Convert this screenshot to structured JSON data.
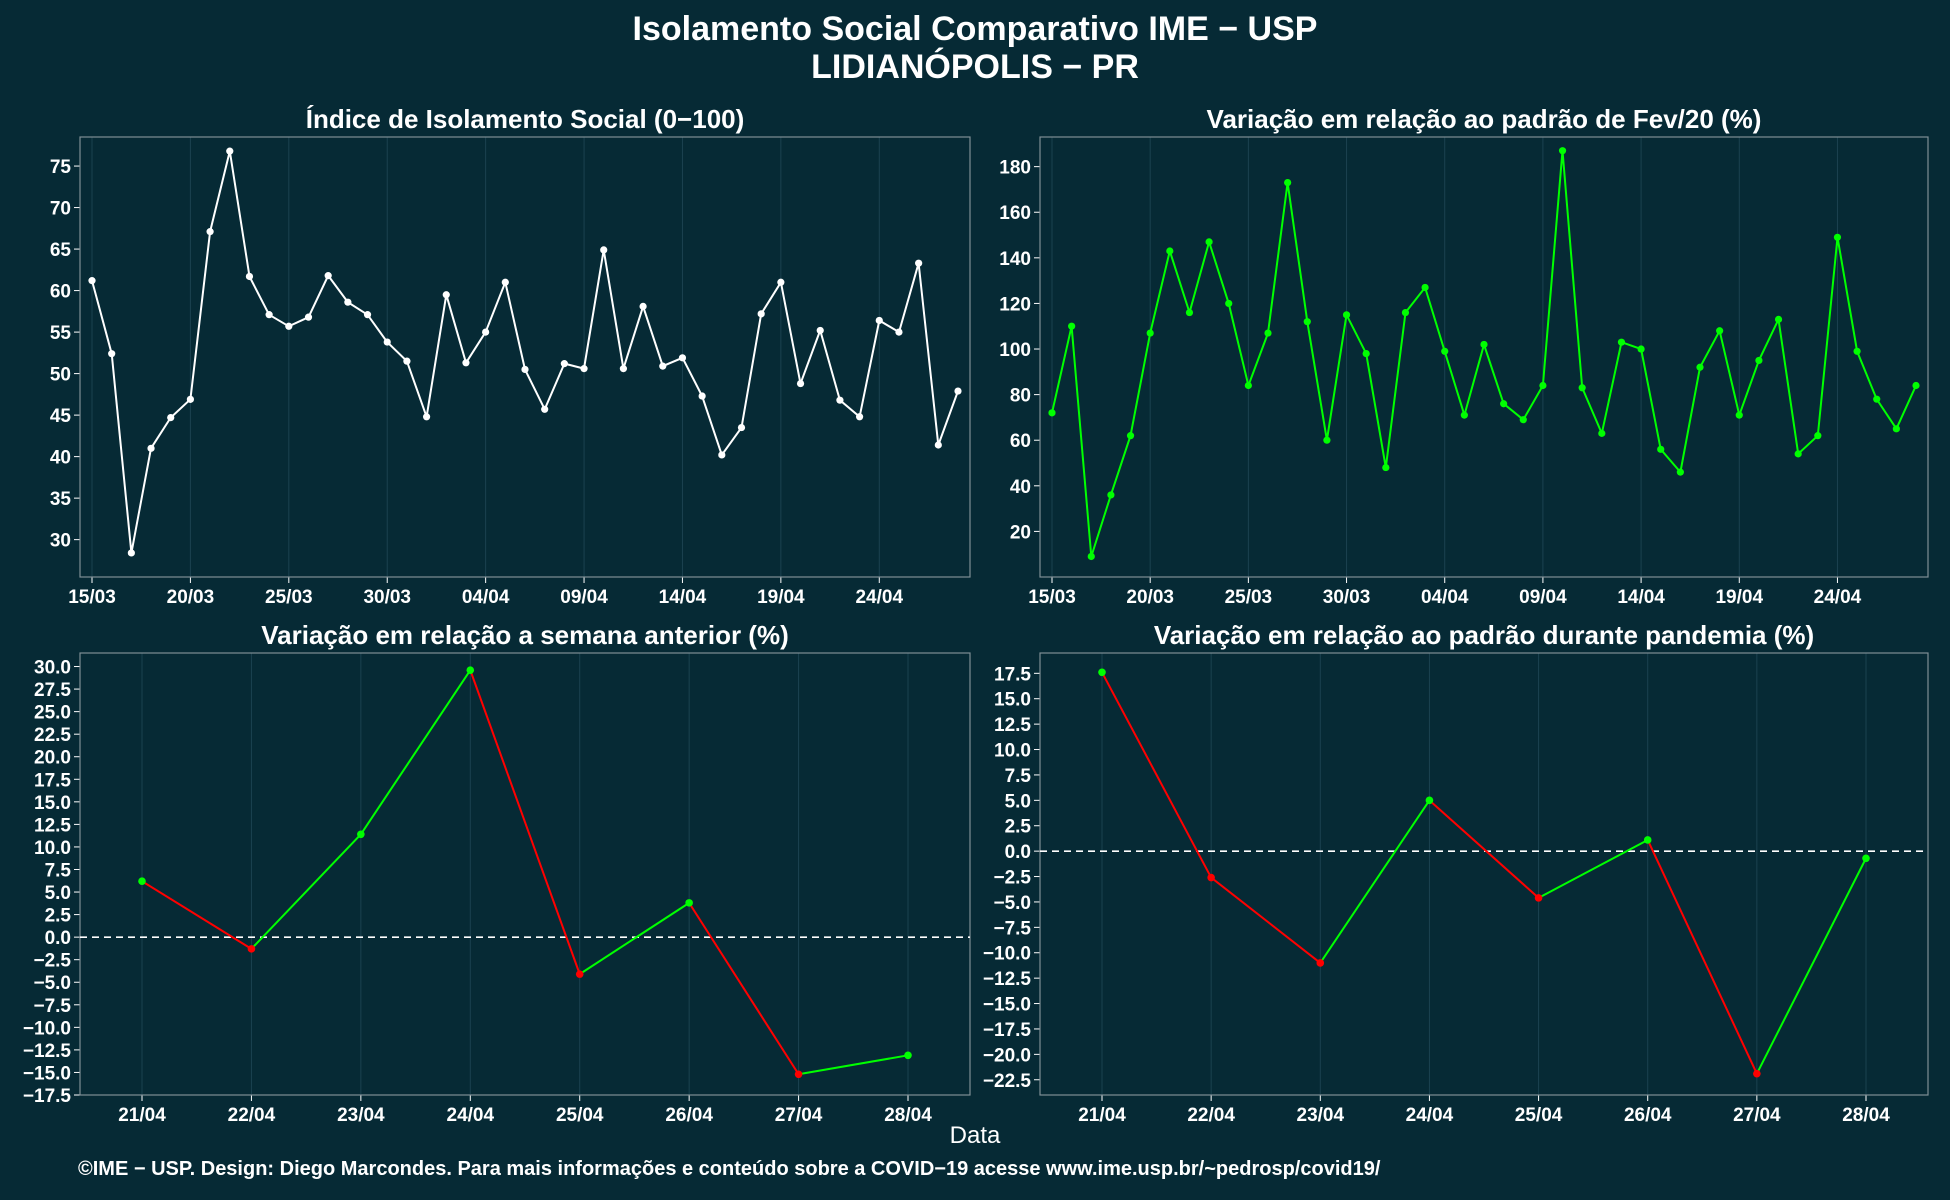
{
  "header": {
    "title_line1": "Isolamento Social Comparativo IME − USP",
    "title_line2": "LIDIANÓPOLIS − PR"
  },
  "footer": {
    "xlabel": "Data",
    "caption": "©IME − USP. Design: Diego Marcondes. Para mais informações e conteúdo sobre a COVID−19 acesse www.ime.usp.br/~pedrosp/covid19/"
  },
  "colors": {
    "background": "#062a35",
    "panel_border": "#7f8f95",
    "grid": "#1b4250",
    "white_series": "#ffffff",
    "increase": "#00ff00",
    "decrease": "#ff0000"
  },
  "chart_data": [
    {
      "type": "line",
      "title": "Índice de Isolamento Social (0−100)",
      "x_start": "15/03",
      "x_tick_labels": [
        "15/03",
        "20/03",
        "25/03",
        "30/03",
        "04/04",
        "09/04",
        "14/04",
        "19/04",
        "24/04"
      ],
      "y_ticks": [
        30,
        35,
        40,
        45,
        50,
        55,
        60,
        65,
        70,
        75
      ],
      "ylim": [
        25.5,
        78.5
      ],
      "color": "white",
      "values": [
        61.2,
        52.4,
        28.4,
        41.0,
        44.7,
        46.9,
        67.1,
        76.8,
        61.7,
        57.1,
        55.7,
        56.8,
        61.8,
        58.6,
        57.1,
        53.8,
        51.5,
        44.8,
        59.5,
        51.3,
        55.0,
        61.0,
        50.5,
        45.7,
        51.2,
        50.6,
        64.9,
        50.6,
        58.1,
        50.9,
        51.9,
        47.3,
        40.2,
        43.5,
        57.2,
        61.0,
        48.8,
        55.2,
        46.8,
        44.8,
        56.4,
        55.0,
        63.3,
        41.4,
        47.9
      ]
    },
    {
      "type": "line",
      "title": "Variação em relação ao padrão de Fev/20 (%)",
      "x_start": "15/03",
      "x_tick_labels": [
        "15/03",
        "20/03",
        "25/03",
        "30/03",
        "04/04",
        "09/04",
        "14/04",
        "19/04",
        "24/04"
      ],
      "y_ticks": [
        20,
        40,
        60,
        80,
        100,
        120,
        140,
        160,
        180
      ],
      "ylim": [
        0,
        193
      ],
      "color": "green",
      "values": [
        72,
        110,
        9,
        36,
        62,
        107,
        143,
        116,
        147,
        120,
        84,
        107,
        173,
        112,
        60,
        115,
        98,
        48,
        116,
        127,
        99,
        71,
        102,
        76,
        69,
        84,
        187,
        83,
        63,
        103,
        100,
        56,
        46,
        92,
        108,
        71,
        95,
        113,
        54,
        62,
        149,
        99,
        78,
        65,
        84
      ]
    },
    {
      "type": "line",
      "title": "Variação em relação a semana anterior (%)",
      "categories": [
        "21/04",
        "22/04",
        "23/04",
        "24/04",
        "25/04",
        "26/04",
        "27/04",
        "28/04"
      ],
      "y_tick_labels": [
        "30.0",
        "27.5",
        "25.0",
        "22.5",
        "20.0",
        "17.5",
        "15.0",
        "12.5",
        "10.0",
        "7.5",
        "5.0",
        "2.5",
        "0.0",
        "−2.5",
        "−5.0",
        "−7.5",
        "−10.0",
        "−12.5",
        "−15.0",
        "−17.5"
      ],
      "ylim": [
        -17.5,
        31.5
      ],
      "reference_line": 0,
      "coloring": "green segment when value increases, red when it decreases",
      "values": [
        6.2,
        -1.3,
        11.4,
        29.6,
        -4.1,
        3.8,
        -15.2,
        -13.1
      ]
    },
    {
      "type": "line",
      "title": "Variação em relação ao padrão durante pandemia (%)",
      "categories": [
        "21/04",
        "22/04",
        "23/04",
        "24/04",
        "25/04",
        "26/04",
        "27/04",
        "28/04"
      ],
      "y_tick_labels": [
        "17.5",
        "15.0",
        "12.5",
        "10.0",
        "7.5",
        "5.0",
        "2.5",
        "0.0",
        "−2.5",
        "−5.0",
        "−7.5",
        "−10.0",
        "−12.5",
        "−15.0",
        "−17.5",
        "−20.0",
        "−22.5"
      ],
      "ylim": [
        -24.0,
        19.5
      ],
      "reference_line": 0,
      "coloring": "green segment when value increases, red when it decreases",
      "values": [
        17.6,
        -2.6,
        -11.0,
        5.0,
        -4.6,
        1.1,
        -21.9,
        -0.7
      ]
    }
  ]
}
